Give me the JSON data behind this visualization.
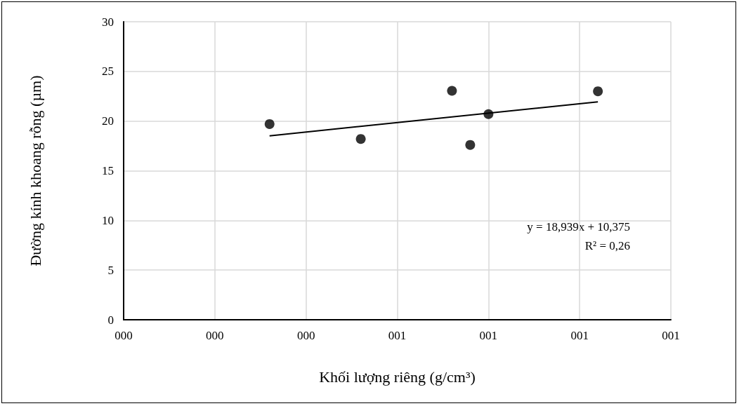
{
  "chart_data": {
    "type": "scatter",
    "xlabel": "Khối lượng riêng (g/cm³)",
    "ylabel": "Đường kính khoang rỗng (µm)",
    "xlim": [
      0.35,
      0.65
    ],
    "xticks": [
      {
        "value": 0.35,
        "label": "000"
      },
      {
        "value": 0.4,
        "label": "000"
      },
      {
        "value": 0.45,
        "label": "000"
      },
      {
        "value": 0.5,
        "label": "001"
      },
      {
        "value": 0.55,
        "label": "001"
      },
      {
        "value": 0.6,
        "label": "001"
      },
      {
        "value": 0.65,
        "label": "001"
      }
    ],
    "ylim": [
      0,
      30
    ],
    "yticks": [
      0,
      5,
      10,
      15,
      20,
      25,
      30
    ],
    "grid": true,
    "marker": "circle",
    "series": [
      {
        "color": "#000000",
        "x": [
          0.43,
          0.48,
          0.53,
          0.54,
          0.55,
          0.61
        ],
        "values": [
          19.7,
          18.2,
          23.05,
          17.6,
          20.7,
          23.0
        ]
      },
      {
        "type": "line",
        "color": "#000000",
        "x": [
          0.43,
          0.61
        ],
        "values": [
          18.52,
          21.93
        ],
        "line_style": "solid",
        "marker": "none"
      }
    ],
    "annotations": [
      "y = 18,939x + 10,375",
      "R² = 0,26"
    ]
  }
}
